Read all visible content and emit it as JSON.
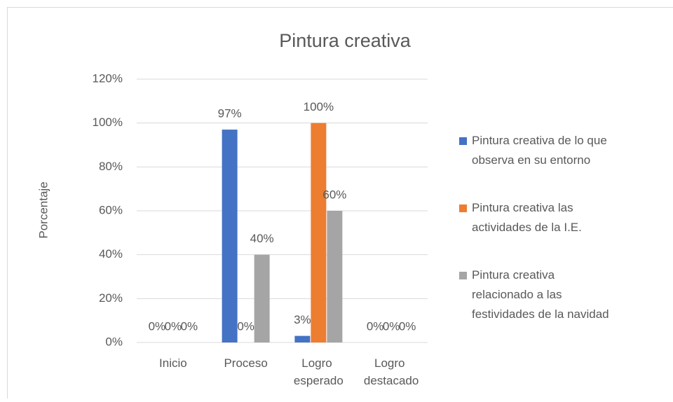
{
  "chart_data": {
    "type": "bar",
    "title": "Pintura creativa",
    "y_label": "Porcentaje",
    "categories": [
      "Inicio",
      "Proceso",
      "Logro esperado",
      "Logro destacado"
    ],
    "series": [
      {
        "name": "Pintura creativa de lo que observa en su entorno",
        "color": "#4472c4",
        "values": [
          0,
          97,
          3,
          0
        ],
        "value_labels": [
          "0%",
          "97%",
          "3%",
          "0%"
        ]
      },
      {
        "name": "Pintura creativa las actividades de la I.E.",
        "color": "#ed7d31",
        "values": [
          0,
          0,
          100,
          0
        ],
        "value_labels": [
          "0%",
          "0%",
          "100%",
          "0%"
        ]
      },
      {
        "name": "Pintura creativa relacionado a las festividades de la navidad",
        "color": "#a5a5a5",
        "values": [
          0,
          40,
          60,
          0
        ],
        "value_labels": [
          "0%",
          "40%",
          "60%",
          "0%"
        ]
      }
    ],
    "ylim": [
      0,
      120
    ],
    "yticks": [
      {
        "value": 0,
        "label": "0%"
      },
      {
        "value": 20,
        "label": "20%"
      },
      {
        "value": 40,
        "label": "40%"
      },
      {
        "value": 60,
        "label": "60%"
      },
      {
        "value": 80,
        "label": "80%"
      },
      {
        "value": 100,
        "label": "100%"
      },
      {
        "value": 120,
        "label": "120%"
      }
    ],
    "grid": true,
    "legend": "right"
  }
}
